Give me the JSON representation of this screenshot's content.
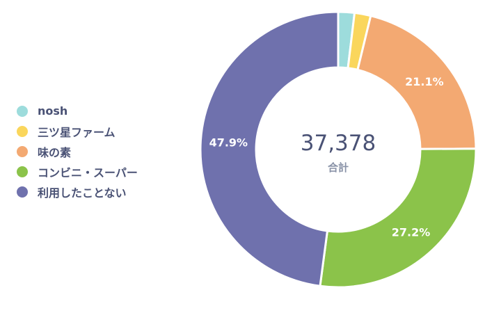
{
  "chart_data": {
    "type": "pie",
    "variant": "donut",
    "legend_position": "left",
    "center": {
      "total": "37,378",
      "caption": "合計"
    },
    "series": [
      {
        "name": "nosh",
        "value": 1.9,
        "color": "#9ddcdc",
        "label": ""
      },
      {
        "name": "三ツ星ファーム",
        "value": 1.9,
        "color": "#fad65c",
        "label": ""
      },
      {
        "name": "味の素",
        "value": 21.1,
        "color": "#f3a972",
        "label": "21.1%"
      },
      {
        "name": "コンビニ・スーパー",
        "value": 27.2,
        "color": "#8bc34a",
        "label": "27.2%"
      },
      {
        "name": "利用したことない",
        "value": 47.9,
        "color": "#6f71ad",
        "label": "47.9%"
      }
    ]
  }
}
